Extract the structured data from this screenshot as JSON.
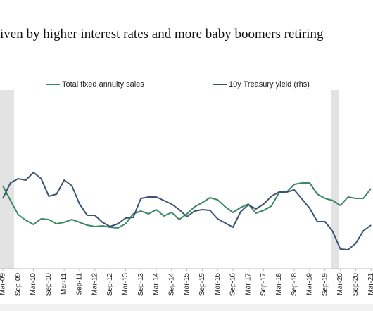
{
  "chart_data": {
    "type": "line",
    "title": "iven by higher interest rates and more baby boomers retiring",
    "categories": [
      "Mar-09",
      null,
      "Sep-09",
      null,
      "Mar-10",
      null,
      "Sep-10",
      null,
      "Mar-11",
      null,
      "Sep-11",
      null,
      "Mar-12",
      null,
      "Sep-12",
      null,
      "Mar-13",
      null,
      "Sep-13",
      null,
      "Mar-14",
      null,
      "Sep-14",
      null,
      "Mar-15",
      null,
      "Sep-15",
      null,
      "Mar-16",
      null,
      "Sep-16",
      null,
      "Mar-17",
      null,
      "Sep-17",
      null,
      "Mar-18",
      null,
      "Sep-18",
      null,
      "Mar-19",
      null,
      "Sep-19",
      null,
      "Mar-20",
      null,
      "Sep-20",
      null,
      "Mar-21"
    ],
    "ylim": [
      0,
      160
    ],
    "y2lim": [
      0,
      160
    ],
    "series": [
      {
        "name": "Total fixed annuity sales",
        "color": "#3a8a63",
        "values": [
          116,
          95,
          75,
          67,
          61,
          69,
          68,
          62,
          64,
          68,
          64,
          60,
          58,
          59,
          57,
          56,
          62,
          76,
          80,
          76,
          82,
          73,
          78,
          68,
          76,
          86,
          92,
          99,
          96,
          86,
          78,
          85,
          90,
          77,
          81,
          87,
          106,
          107,
          118,
          120,
          120,
          104,
          98,
          95,
          88,
          100,
          98,
          98,
          112
        ]
      },
      {
        "name": "10y Treasury yield (rhs)",
        "color": "#3d5373",
        "axis": "y2",
        "values": [
          98,
          120,
          126,
          124,
          135,
          126,
          101,
          104,
          124,
          116,
          90,
          74,
          74,
          64,
          58,
          62,
          70,
          71,
          98,
          100,
          100,
          95,
          90,
          82,
          72,
          80,
          82,
          81,
          69,
          63,
          57,
          79,
          89,
          83,
          90,
          101,
          107,
          107,
          110,
          97,
          84,
          65,
          65,
          51,
          26,
          25,
          34,
          52,
          60
        ]
      }
    ]
  }
}
